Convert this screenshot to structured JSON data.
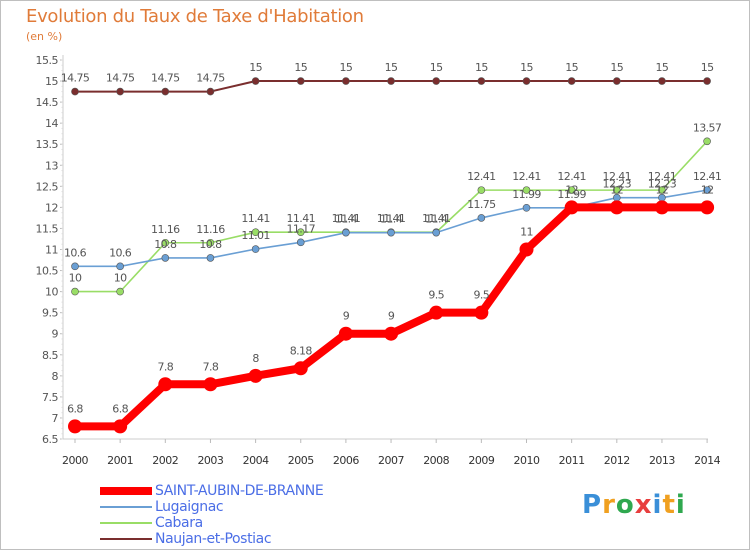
{
  "chart_data": {
    "type": "line",
    "title": "Evolution du Taux de Taxe d'Habitation",
    "ylabel": "(en %)",
    "x": [
      "2000",
      "2001",
      "2002",
      "2003",
      "2004",
      "2005",
      "2006",
      "2007",
      "2008",
      "2009",
      "2010",
      "2011",
      "2012",
      "2013",
      "2014"
    ],
    "ylim": [
      6.5,
      15.5
    ],
    "yticks": [
      "6.5",
      "7",
      "7.5",
      "8",
      "8.5",
      "9",
      "9.5",
      "10",
      "10.5",
      "11",
      "11.5",
      "12",
      "12.5",
      "13",
      "13.5",
      "14",
      "14.5",
      "15",
      "15.5"
    ],
    "grid": false,
    "series": [
      {
        "name": "SAINT-AUBIN-DE-BRANNE",
        "color": "#ff0000",
        "values": [
          6.8,
          6.8,
          7.8,
          7.8,
          8,
          8.18,
          9,
          9,
          9.5,
          9.5,
          11,
          12,
          12,
          12,
          12
        ],
        "labels": [
          "6.8",
          "6.8",
          "7.8",
          "7.8",
          "8",
          "8.18",
          "9",
          "9",
          "9.5",
          "9.5",
          "11",
          "12",
          "12",
          "12",
          "12"
        ]
      },
      {
        "name": "Lugaignac",
        "color": "#6a9fd4",
        "values": [
          10.6,
          10.6,
          10.8,
          10.8,
          11.01,
          11.17,
          11.4,
          11.4,
          11.4,
          11.75,
          11.99,
          11.99,
          12.23,
          12.23,
          12.41
        ],
        "labels": [
          "10.6",
          "10.6",
          "10.8",
          "10.8",
          "11.01",
          "11.17",
          "11.4",
          "11.4",
          "11.4",
          "11.75",
          "11.99",
          "11.99",
          "12.23",
          "12.23",
          "12.41"
        ]
      },
      {
        "name": "Cabara",
        "color": "#99dd66",
        "values": [
          10,
          10,
          11.16,
          11.16,
          11.41,
          11.41,
          11.41,
          11.41,
          11.41,
          12.41,
          12.41,
          12.41,
          12.41,
          12.41,
          13.57
        ],
        "labels": [
          "10",
          "10",
          "11.16",
          "11.16",
          "11.41",
          "11.41",
          "11.41",
          "11.41",
          "11.41",
          "12.41",
          "12.41",
          "12.41",
          "12.41",
          "12.41",
          "13.57"
        ]
      },
      {
        "name": "Naujan-et-Postiac",
        "color": "#7a2e2e",
        "values": [
          14.75,
          14.75,
          14.75,
          14.75,
          15,
          15,
          15,
          15,
          15,
          15,
          15,
          15,
          15,
          15,
          15
        ],
        "labels": [
          "14.75",
          "14.75",
          "14.75",
          "14.75",
          "15",
          "15",
          "15",
          "15",
          "15",
          "15",
          "15",
          "15",
          "15",
          "15",
          "15"
        ]
      }
    ]
  },
  "legend": {
    "items": [
      {
        "label": "SAINT-AUBIN-DE-BRANNE",
        "color": "#ff0000"
      },
      {
        "label": "Lugaignac",
        "color": "#6a9fd4"
      },
      {
        "label": "Cabara",
        "color": "#99dd66"
      },
      {
        "label": "Naujan-et-Postiac",
        "color": "#7a2e2e"
      }
    ]
  },
  "logo": {
    "text": "Proxiti",
    "colors": [
      "#3a8fd8",
      "#f0a020",
      "#2fa84f",
      "#e83e3e",
      "#3a8fd8",
      "#f0a020",
      "#2fa84f"
    ]
  }
}
